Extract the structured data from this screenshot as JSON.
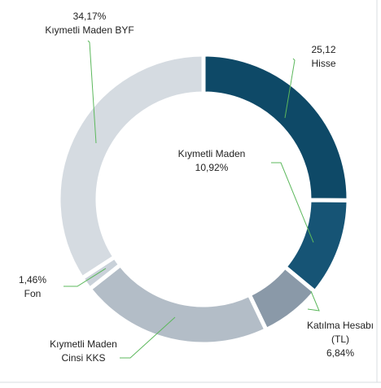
{
  "chart_data": {
    "type": "donut",
    "categories": [
      "Hisse",
      "Kıymetli Maden",
      "Katılma Hesabı (TL)",
      "Kıymetli Maden Cinsi KKS",
      "Fon",
      "Kıymetli Maden BYF"
    ],
    "values": [
      25.12,
      10.92,
      6.84,
      21.49,
      1.46,
      34.17
    ],
    "value_labels": [
      "25,12",
      "10,92%",
      "6,84%",
      null,
      "1,46%",
      "34,17%"
    ],
    "colors": [
      "#0e4967",
      "#165475",
      "#8a99a8",
      "#b3bdc7",
      "#c9d1d9",
      "#d5dbe1"
    ]
  }
}
